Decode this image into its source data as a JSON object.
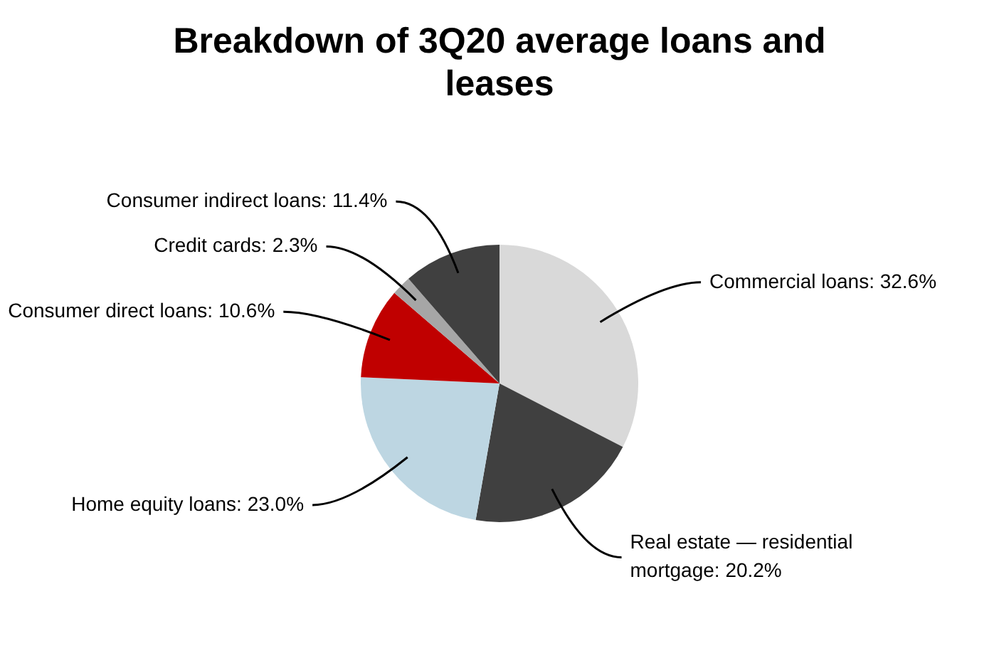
{
  "chart_data": {
    "type": "pie",
    "title": "Breakdown of 3Q20 average loans and leases",
    "categories": [
      "Commercial loans",
      "Real estate — residential mortgage",
      "Home equity loans",
      "Consumer direct loans",
      "Credit cards",
      "Consumer indirect loans"
    ],
    "values": [
      32.6,
      20.2,
      23.0,
      10.6,
      2.3,
      11.4
    ],
    "value_labels": [
      "32.6%",
      "20.2%",
      "23.0%",
      "10.6%",
      "2.3%",
      "11.4%"
    ],
    "colors": [
      "#d9d9d9",
      "#404040",
      "#bdd6e2",
      "#c00000",
      "#a6a6a6",
      "#404040"
    ],
    "legend": false
  }
}
